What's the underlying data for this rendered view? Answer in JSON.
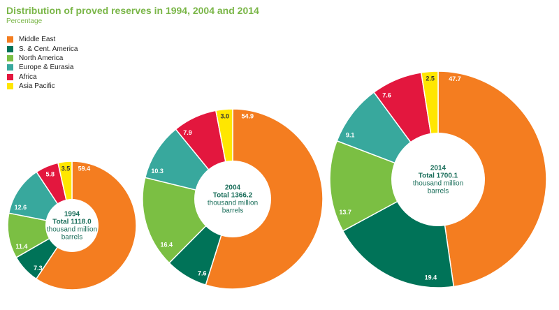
{
  "chart_data": {
    "type": "pie",
    "title": "Distribution of proved reserves in 1994, 2004 and 2014",
    "subtitle": "Percentage",
    "series_names": [
      "Middle East",
      "S. & Cent. America",
      "North America",
      "Europe & Eurasia",
      "Africa",
      "Asia Pacific"
    ],
    "colors": [
      "#f47d20",
      "#007358",
      "#7bbf43",
      "#38a89d",
      "#e3173e",
      "#ffe600"
    ],
    "unit_total": "thousand million barrels",
    "charts": [
      {
        "year": "1994",
        "total_label": "Total 1118.0",
        "total": 1118.0,
        "unit_line1": "thousand million",
        "unit_line2": "barrels",
        "values": [
          59.4,
          7.3,
          11.4,
          12.6,
          5.8,
          3.5
        ],
        "value_labels": [
          "59.4",
          "7.3",
          "11.4",
          "12.6",
          "5.8",
          "3.5"
        ]
      },
      {
        "year": "2004",
        "total_label": "Total 1366.2",
        "total": 1366.2,
        "unit_line1": "thousand million",
        "unit_line2": "barrels",
        "values": [
          54.9,
          7.6,
          16.4,
          10.3,
          7.9,
          3.0
        ],
        "value_labels": [
          "54.9",
          "7.6",
          "16.4",
          "10.3",
          "7.9",
          "3.0"
        ]
      },
      {
        "year": "2014",
        "total_label": "Total 1700.1",
        "total": 1700.1,
        "unit_line1": "thousand million",
        "unit_line2": "barrels",
        "values": [
          47.7,
          19.4,
          13.7,
          9.1,
          7.6,
          2.5
        ],
        "value_labels": [
          "47.7",
          "19.4",
          "13.7",
          "9.1",
          "7.6",
          "2.5"
        ]
      }
    ]
  }
}
